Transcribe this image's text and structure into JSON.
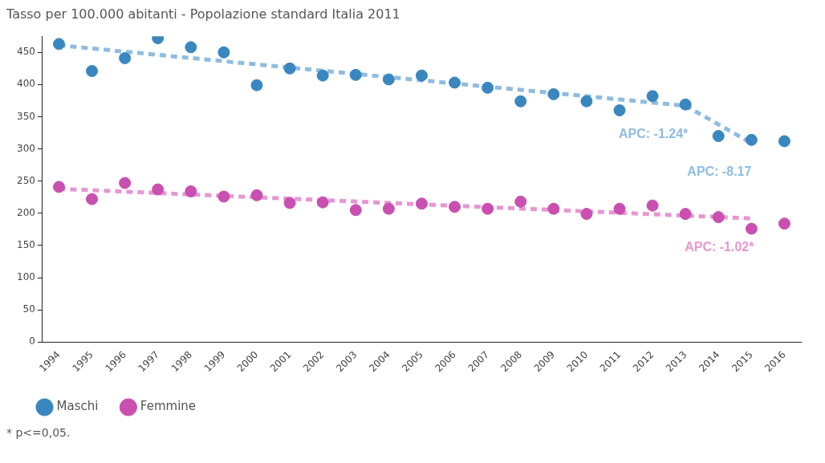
{
  "chart_data": {
    "type": "scatter",
    "title": "Tasso per 100.000 abitanti - Popolazione standard Italia 2011",
    "categories": [
      "1994",
      "1995",
      "1996",
      "1997",
      "1998",
      "1999",
      "2000",
      "2001",
      "2002",
      "2003",
      "2004",
      "2005",
      "2006",
      "2007",
      "2008",
      "2009",
      "2010",
      "2011",
      "2012",
      "2013",
      "2014",
      "2015",
      "2016"
    ],
    "series": [
      {
        "name": "Maschi",
        "color": "#3a87c0",
        "values": [
          463,
          421,
          441,
          472,
          458,
          450,
          399,
          425,
          414,
          415,
          408,
          414,
          403,
          395,
          374,
          385,
          374,
          360,
          382,
          369,
          320,
          314,
          312
        ]
      },
      {
        "name": "Femmine",
        "color": "#c94fb0",
        "values": [
          241,
          222,
          247,
          237,
          234,
          226,
          228,
          216,
          217,
          205,
          207,
          215,
          210,
          207,
          218,
          207,
          199,
          207,
          212,
          199,
          194,
          176,
          184
        ]
      },
      {
        "type": "line",
        "color": "#8fbce0",
        "line_style": "dashed",
        "marker": "none",
        "values": [
          461,
          null,
          null,
          null,
          null,
          null,
          null,
          null,
          null,
          null,
          null,
          null,
          null,
          null,
          null,
          null,
          null,
          null,
          null,
          367,
          null,
          309,
          null
        ]
      },
      {
        "type": "line",
        "color": "#e597d2",
        "line_style": "dashed",
        "marker": "none",
        "values": [
          238,
          null,
          null,
          null,
          null,
          null,
          null,
          null,
          null,
          null,
          null,
          null,
          null,
          null,
          null,
          null,
          null,
          null,
          null,
          null,
          null,
          192,
          null
        ]
      }
    ],
    "ylim": [
      0,
      475
    ],
    "yticks": [
      0,
      50,
      100,
      150,
      200,
      250,
      300,
      350,
      400,
      450
    ],
    "grid": false,
    "legend": "bottom left",
    "marker": "circle",
    "annotations": [
      "APC: -1.24*",
      "APC: -8.17",
      "APC: -1.02*",
      "* p<=0,05."
    ]
  }
}
